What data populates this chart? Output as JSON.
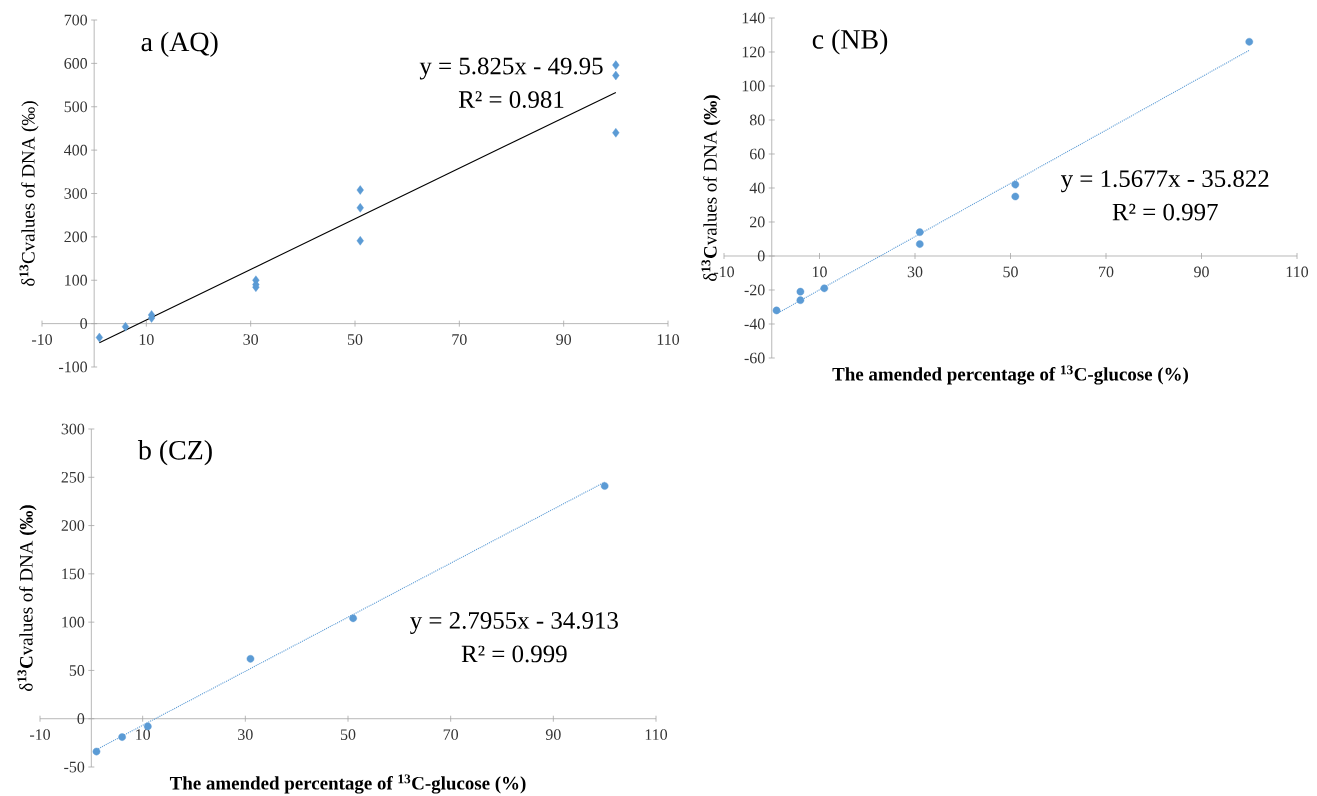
{
  "chart_data": [
    {
      "type": "scatter",
      "title": "a (AQ)",
      "ylabel": "δ**$^{13}$**Cvalues of DNA (‰)",
      "xlim": [
        -10,
        110
      ],
      "xticks": [
        -10,
        10,
        30,
        50,
        70,
        90,
        110
      ],
      "ylim": [
        -100,
        700
      ],
      "yticks": [
        -100,
        0,
        100,
        200,
        300,
        400,
        500,
        600,
        700
      ],
      "series": [
        {
          "type": "scatter",
          "color": "#5b9bd5",
          "marker": "diamond",
          "x": [
            1,
            6,
            11,
            11,
            31,
            31,
            31,
            51,
            51,
            51,
            100,
            100,
            100
          ],
          "values": [
            -32,
            -7,
            13,
            20,
            100,
            90,
            84,
            308,
            267,
            191,
            596,
            572,
            440
          ]
        },
        {
          "type": "line",
          "color": "#000000",
          "marker": "none",
          "line_style": "solid",
          "x": [
            1,
            100
          ],
          "values": [
            -44,
            533
          ]
        }
      ],
      "annotations": [
        "y = 5.825x - 49.95",
        "R² = 0.981"
      ]
    },
    {
      "type": "scatter",
      "title": "c (NB)",
      "ylabel": "δ**$^{13}$C**values of DNA **(‰)**",
      "xlabel": "The amended percentage of $^{13}$C-glucose (%)",
      "xlim": [
        -10,
        110
      ],
      "xticks": [
        -10,
        10,
        30,
        50,
        70,
        90,
        110
      ],
      "ylim": [
        -60,
        140
      ],
      "yticks": [
        -60,
        -40,
        -20,
        0,
        20,
        40,
        60,
        80,
        100,
        120,
        140
      ],
      "series": [
        {
          "type": "scatter",
          "color": "#5b9bd5",
          "marker": "circle",
          "x": [
            1,
            6,
            6,
            11,
            31,
            31,
            51,
            51,
            100
          ],
          "values": [
            -32,
            -21,
            -26,
            -19,
            14,
            7,
            42,
            35,
            126
          ]
        },
        {
          "type": "line",
          "color": "#5b9bd5",
          "marker": "none",
          "line_style": "dotted",
          "x": [
            1,
            100
          ],
          "values": [
            -34,
            121
          ]
        }
      ],
      "annotations": [
        "y = 1.5677x - 35.822",
        "R² = 0.997"
      ]
    },
    {
      "type": "scatter",
      "title": "b (CZ)",
      "ylabel": "δ**$^{13}$C**values of DNA **(‰)**",
      "xlabel": "The amended percentage of $^{13}$C-glucose (%)",
      "xlim": [
        -10,
        110
      ],
      "xticks": [
        -10,
        10,
        30,
        50,
        70,
        90,
        110
      ],
      "ylim": [
        -50,
        300
      ],
      "yticks": [
        -50,
        0,
        50,
        100,
        150,
        200,
        250,
        300
      ],
      "series": [
        {
          "type": "scatter",
          "color": "#5b9bd5",
          "marker": "circle",
          "x": [
            1,
            6,
            11,
            31,
            51,
            100
          ],
          "values": [
            -34,
            -19,
            -8,
            62,
            104,
            241
          ]
        },
        {
          "type": "line",
          "color": "#5b9bd5",
          "marker": "none",
          "line_style": "dotted",
          "x": [
            1,
            100
          ],
          "values": [
            -32,
            245
          ]
        }
      ],
      "annotations": [
        "y = 2.7955x - 34.913",
        "R² = 0.999"
      ]
    }
  ]
}
